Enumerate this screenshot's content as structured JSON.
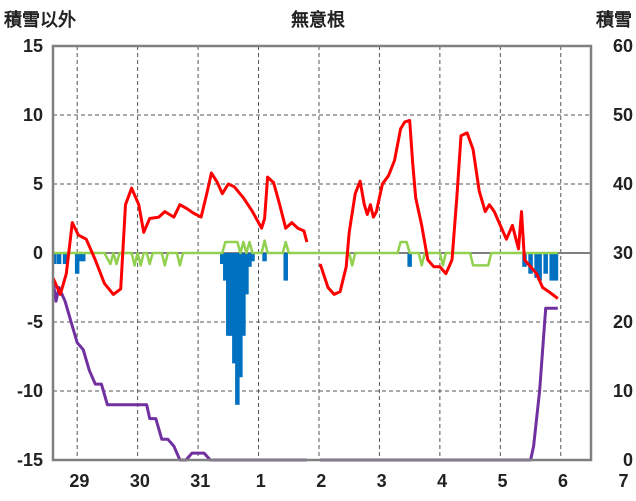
{
  "chart_data": {
    "type": "line",
    "title": "無意根",
    "ylabel_left": "積雪以外",
    "ylabel_right": "積雪",
    "ylim_left": [
      -15,
      15
    ],
    "ylim_right": [
      0,
      60
    ],
    "yticks_left": [
      15,
      10,
      5,
      0,
      -5,
      -10,
      -15
    ],
    "yticks_right": [
      60,
      50,
      40,
      30,
      20,
      10,
      0
    ],
    "x_categories": [
      "29",
      "30",
      "31",
      "1",
      "2",
      "3",
      "4",
      "5",
      "6",
      "7"
    ],
    "x_range_days": [
      28.6,
      7.5
    ],
    "vertical_grid": "dashed at each day boundary",
    "horizontal_grid": "dashed at every tick",
    "colors": {
      "temperature": "#ff0000",
      "sunshine": "#92d050",
      "precipitation": "#0070c0",
      "snow_depth": "#7030a0",
      "zero_line": "#7f7f7f",
      "plot_border": "#808080"
    },
    "series": [
      {
        "key": "temperature",
        "axis": "left",
        "points": [
          [
            0.0,
            -1.8
          ],
          [
            0.12,
            -3.0
          ],
          [
            0.22,
            -1.5
          ],
          [
            0.32,
            2.2
          ],
          [
            0.42,
            1.3
          ],
          [
            0.55,
            1.0
          ],
          [
            0.7,
            -0.5
          ],
          [
            0.85,
            -2.2
          ],
          [
            1.0,
            -3.0
          ],
          [
            1.12,
            -2.6
          ],
          [
            1.2,
            3.5
          ],
          [
            1.3,
            4.7
          ],
          [
            1.42,
            3.5
          ],
          [
            1.5,
            1.5
          ],
          [
            1.6,
            2.5
          ],
          [
            1.75,
            2.6
          ],
          [
            1.85,
            3.0
          ],
          [
            2.0,
            2.6
          ],
          [
            2.1,
            3.5
          ],
          [
            2.22,
            3.2
          ],
          [
            2.32,
            2.9
          ],
          [
            2.45,
            2.6
          ],
          [
            2.55,
            4.4
          ],
          [
            2.62,
            5.8
          ],
          [
            2.72,
            5.1
          ],
          [
            2.8,
            4.3
          ],
          [
            2.9,
            5.0
          ],
          [
            3.0,
            4.8
          ],
          [
            3.15,
            4.0
          ],
          [
            3.3,
            3.0
          ],
          [
            3.45,
            1.8
          ],
          [
            3.5,
            2.5
          ],
          [
            3.55,
            5.5
          ],
          [
            3.65,
            5.1
          ],
          [
            3.75,
            3.5
          ],
          [
            3.85,
            1.8
          ],
          [
            3.95,
            2.2
          ],
          [
            4.05,
            1.8
          ],
          [
            4.15,
            1.6
          ],
          [
            4.2,
            0.8
          ],
          [
            null,
            null
          ],
          [
            4.42,
            -0.8
          ],
          [
            4.55,
            -2.5
          ],
          [
            4.65,
            -3.0
          ],
          [
            4.75,
            -2.8
          ],
          [
            4.85,
            -1.0
          ],
          [
            4.9,
            1.5
          ],
          [
            5.0,
            4.3
          ],
          [
            5.08,
            5.2
          ],
          [
            5.15,
            3.5
          ],
          [
            5.2,
            2.8
          ],
          [
            5.25,
            3.5
          ],
          [
            5.3,
            2.6
          ],
          [
            5.35,
            3.0
          ],
          [
            5.45,
            5.0
          ],
          [
            5.55,
            5.6
          ],
          [
            5.65,
            6.7
          ],
          [
            5.75,
            9.0
          ],
          [
            5.82,
            9.5
          ],
          [
            5.9,
            9.6
          ],
          [
            5.95,
            6.5
          ],
          [
            6.0,
            4.0
          ],
          [
            6.1,
            2.0
          ],
          [
            6.2,
            -0.5
          ],
          [
            6.3,
            -1.0
          ],
          [
            6.4,
            -1.0
          ],
          [
            6.5,
            -1.5
          ],
          [
            6.6,
            -0.5
          ],
          [
            6.68,
            4.0
          ],
          [
            6.75,
            8.5
          ],
          [
            6.85,
            8.7
          ],
          [
            6.95,
            7.5
          ],
          [
            7.05,
            4.5
          ],
          [
            7.15,
            3.0
          ],
          [
            7.22,
            3.5
          ],
          [
            7.3,
            3.0
          ],
          [
            7.4,
            2.0
          ],
          [
            7.5,
            1.0
          ],
          [
            7.6,
            2.0
          ],
          [
            7.7,
            0.3
          ],
          [
            7.75,
            3.0
          ],
          [
            7.8,
            -0.5
          ],
          [
            7.9,
            -1.0
          ],
          [
            8.0,
            -1.5
          ],
          [
            8.05,
            -2.0
          ],
          [
            8.1,
            -2.5
          ],
          [
            8.2,
            -2.8
          ],
          [
            8.35,
            -3.3
          ]
        ]
      },
      {
        "key": "sunshine",
        "axis": "left",
        "points": [
          [
            0.0,
            0
          ],
          [
            0.85,
            0
          ],
          [
            0.95,
            -0.8
          ],
          [
            1.0,
            0
          ],
          [
            1.05,
            -0.8
          ],
          [
            1.1,
            0
          ],
          [
            1.3,
            0
          ],
          [
            1.35,
            -0.9
          ],
          [
            1.4,
            0
          ],
          [
            1.45,
            -0.9
          ],
          [
            1.5,
            0
          ],
          [
            1.55,
            0
          ],
          [
            1.6,
            -0.8
          ],
          [
            1.65,
            0
          ],
          [
            1.8,
            0
          ],
          [
            1.85,
            -0.9
          ],
          [
            1.9,
            0
          ],
          [
            2.05,
            0
          ],
          [
            2.1,
            -0.9
          ],
          [
            2.15,
            0
          ],
          [
            2.8,
            0
          ],
          [
            2.85,
            0.8
          ],
          [
            3.05,
            0.8
          ],
          [
            3.1,
            0
          ],
          [
            3.15,
            0.8
          ],
          [
            3.2,
            0
          ],
          [
            3.25,
            0.8
          ],
          [
            3.3,
            0
          ],
          [
            3.45,
            0
          ],
          [
            3.5,
            0.9
          ],
          [
            3.55,
            0
          ],
          [
            3.8,
            0
          ],
          [
            3.85,
            0.8
          ],
          [
            3.9,
            0
          ],
          [
            4.2,
            0
          ],
          [
            4.9,
            0
          ],
          [
            4.95,
            -0.9
          ],
          [
            5.0,
            0
          ],
          [
            5.7,
            0
          ],
          [
            5.75,
            0.8
          ],
          [
            5.85,
            0.8
          ],
          [
            5.9,
            0
          ],
          [
            6.05,
            0
          ],
          [
            6.1,
            -0.9
          ],
          [
            6.15,
            0
          ],
          [
            6.4,
            0
          ],
          [
            6.45,
            -0.9
          ],
          [
            6.5,
            0
          ],
          [
            6.9,
            0
          ],
          [
            6.95,
            -0.9
          ],
          [
            7.2,
            -0.9
          ],
          [
            7.25,
            0
          ],
          [
            8.35,
            0
          ]
        ]
      },
      {
        "key": "precipitation",
        "axis": "left",
        "bars": [
          [
            0.02,
            -0.8
          ],
          [
            0.1,
            -0.8
          ],
          [
            0.2,
            -0.8
          ],
          [
            0.4,
            -1.5
          ],
          [
            0.45,
            -0.6
          ],
          [
            0.5,
            -0.6
          ],
          [
            2.8,
            -0.8
          ],
          [
            2.85,
            -2.0
          ],
          [
            2.9,
            -6.0
          ],
          [
            2.95,
            -6.0
          ],
          [
            3.0,
            -8.0
          ],
          [
            3.05,
            -11.0
          ],
          [
            3.1,
            -9.0
          ],
          [
            3.15,
            -6.0
          ],
          [
            3.2,
            -3.0
          ],
          [
            3.25,
            -1.0
          ],
          [
            3.3,
            -0.6
          ],
          [
            3.5,
            -0.6
          ],
          [
            3.85,
            -2.0
          ],
          [
            5.9,
            -1.0
          ],
          [
            7.8,
            -1.0
          ],
          [
            7.9,
            -1.5
          ],
          [
            8.0,
            -1.8
          ],
          [
            8.05,
            -2.0
          ],
          [
            8.15,
            -1.5
          ],
          [
            8.25,
            -2.0
          ],
          [
            8.32,
            -2.0
          ]
        ]
      },
      {
        "key": "snow_depth",
        "axis": "right",
        "points": [
          [
            0.0,
            26
          ],
          [
            0.05,
            23
          ],
          [
            0.1,
            25
          ],
          [
            0.2,
            23
          ],
          [
            0.3,
            20
          ],
          [
            0.4,
            17
          ],
          [
            0.5,
            16
          ],
          [
            0.6,
            13
          ],
          [
            0.7,
            11
          ],
          [
            0.8,
            11
          ],
          [
            0.9,
            8
          ],
          [
            1.0,
            8
          ],
          [
            1.2,
            8
          ],
          [
            1.4,
            8
          ],
          [
            1.55,
            8
          ],
          [
            1.6,
            6
          ],
          [
            1.7,
            6
          ],
          [
            1.8,
            3
          ],
          [
            1.9,
            3
          ],
          [
            2.0,
            2
          ],
          [
            2.1,
            0
          ],
          [
            2.2,
            0
          ],
          [
            2.3,
            1
          ],
          [
            2.5,
            1
          ],
          [
            2.6,
            0
          ],
          [
            4.2,
            0
          ],
          [
            null,
            null
          ],
          [
            4.42,
            0
          ],
          [
            7.9,
            0
          ],
          [
            7.95,
            2
          ],
          [
            8.05,
            10
          ],
          [
            8.15,
            22
          ],
          [
            8.25,
            22
          ],
          [
            8.35,
            22
          ]
        ]
      }
    ]
  }
}
